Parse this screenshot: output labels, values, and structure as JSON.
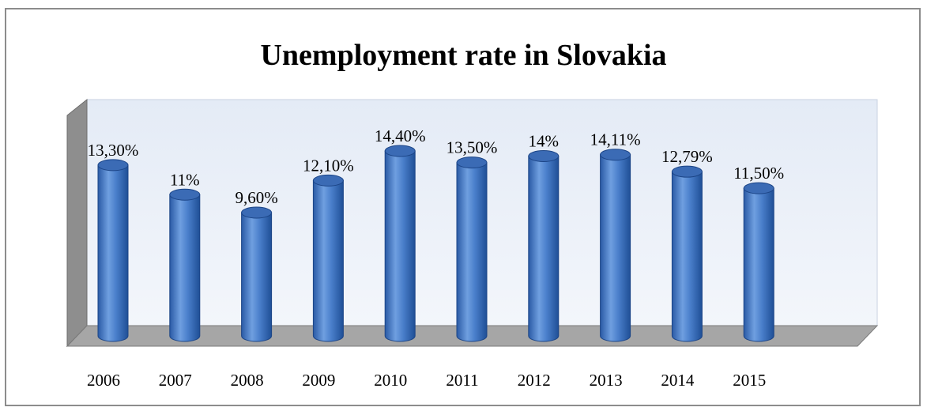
{
  "chart_data": {
    "type": "bar",
    "title": "Unemployment rate in Slovakia",
    "xlabel": "",
    "ylabel": "",
    "categories": [
      "2006",
      "2007",
      "2008",
      "2009",
      "2010",
      "2011",
      "2012",
      "2013",
      "2014",
      "2015"
    ],
    "values": [
      13.3,
      11.0,
      9.6,
      12.1,
      14.4,
      13.5,
      14.0,
      14.11,
      12.79,
      11.5
    ],
    "data_labels": [
      "13,30%",
      "11%",
      "9,60%",
      "12,10%",
      "14,40%",
      "13,50%",
      "14%",
      "14,11%",
      "12,79%",
      "11,50%"
    ],
    "ylim": [
      0,
      16
    ],
    "grid": false,
    "legend": "none",
    "bar_shape": "3d-cylinder",
    "colors": {
      "bar_light": "#6f9fe0",
      "bar_mid": "#4a7fcb",
      "bar_dark": "#1f4f96",
      "bar_top": "#3b6bb5",
      "back_wall": "#e8eef8",
      "floor": "#a6a6a6",
      "side_wall": "#8e8e8e"
    }
  }
}
